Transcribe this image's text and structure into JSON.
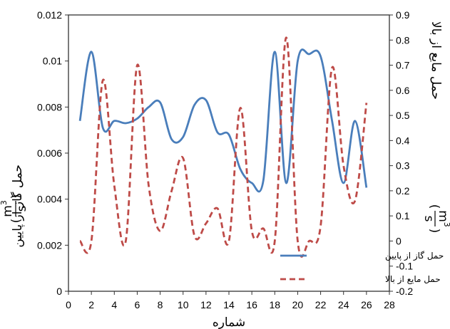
{
  "chart_data": {
    "type": "line",
    "xlabel": "شماره",
    "ylabel_left": "حمل گاز از پایین",
    "ylabel_right": "حمل مایع از بالا",
    "unit_numerator": "m",
    "unit_exponent": "3",
    "unit_denominator": "s",
    "xlim": [
      0,
      28
    ],
    "ylim_left": [
      0,
      0.012
    ],
    "ylim_right": [
      -0.2,
      0.9
    ],
    "x_ticks": [
      "0",
      "2",
      "4",
      "6",
      "8",
      "10",
      "12",
      "14",
      "16",
      "18",
      "20",
      "22",
      "24",
      "26",
      "28"
    ],
    "y_left_ticks": [
      "0",
      "0.002",
      "0.004",
      "0.006",
      "0.008",
      "0.01",
      "0.012"
    ],
    "y_right_ticks": [
      "-0.2",
      "-0.1",
      "0",
      "0.1",
      "0.2",
      "0.3",
      "0.4",
      "0.5",
      "0.6",
      "0.7",
      "0.8",
      "0.9"
    ],
    "grid": false,
    "legend_position": "bottom-right",
    "series": [
      {
        "name": "حمل گاز از پایین",
        "axis": "left",
        "style": "solid",
        "color": "#4a7ebb",
        "points": [
          [
            1,
            0.0074
          ],
          [
            2,
            0.0104
          ],
          [
            3,
            0.0071
          ],
          [
            4,
            0.0074
          ],
          [
            5,
            0.0073
          ],
          [
            6,
            0.0075
          ],
          [
            7,
            0.008
          ],
          [
            8,
            0.0082
          ],
          [
            9,
            0.0066
          ],
          [
            10,
            0.0067
          ],
          [
            11,
            0.0081
          ],
          [
            12,
            0.0083
          ],
          [
            13,
            0.0069
          ],
          [
            14,
            0.0068
          ],
          [
            15,
            0.0053
          ],
          [
            16,
            0.0047
          ],
          [
            17,
            0.0048
          ],
          [
            18,
            0.0104
          ],
          [
            19,
            0.0047
          ],
          [
            20,
            0.01
          ],
          [
            21,
            0.0103
          ],
          [
            22,
            0.0102
          ],
          [
            23,
            0.0074
          ],
          [
            24,
            0.0047
          ],
          [
            25,
            0.0074
          ],
          [
            26,
            0.0045
          ]
        ]
      },
      {
        "name": "حمل مایع از بالا",
        "axis": "right",
        "style": "dashed",
        "color": "#be4b48",
        "points": [
          [
            1,
            0.0
          ],
          [
            2,
            0.0
          ],
          [
            3,
            0.64
          ],
          [
            4,
            0.22
          ],
          [
            5,
            0.0
          ],
          [
            6,
            0.7
          ],
          [
            7,
            0.22
          ],
          [
            8,
            0.04
          ],
          [
            9,
            0.2
          ],
          [
            10,
            0.33
          ],
          [
            11,
            0.02
          ],
          [
            12,
            0.07
          ],
          [
            13,
            0.13
          ],
          [
            14,
            0.0
          ],
          [
            15,
            0.53
          ],
          [
            16,
            0.04
          ],
          [
            17,
            0.05
          ],
          [
            18,
            0.0
          ],
          [
            19,
            0.81
          ],
          [
            20,
            0.0
          ],
          [
            21,
            0.0
          ],
          [
            22,
            0.06
          ],
          [
            23,
            0.69
          ],
          [
            24,
            0.3
          ],
          [
            25,
            0.16
          ],
          [
            26,
            0.55
          ]
        ]
      }
    ]
  }
}
